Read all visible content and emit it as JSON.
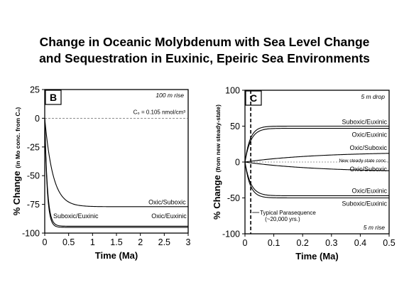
{
  "slide": {
    "title_line1": "Change in Oceanic Molybdenum with Sea Level Change",
    "title_line2": "and Sequestration in Euxinic, Epeiric Sea Environments"
  },
  "chart_data": [
    {
      "type": "line",
      "panel": "B",
      "title": "",
      "corner_note": "100 m rise",
      "reference_label": "C₀ = 0.105 nmol/cm³",
      "xlabel": "Time (Ma)",
      "ylabel_main": "% Change",
      "ylabel_sub": "(in Mo conc. from C₀)",
      "xlim": [
        0,
        3
      ],
      "ylim": [
        -100,
        25
      ],
      "xticks": [
        0,
        0.5,
        1,
        1.5,
        2,
        2.5,
        3
      ],
      "xtick_labels": [
        "0",
        "0.5",
        "1",
        "1.5",
        "2",
        "2.5",
        "3"
      ],
      "yticks": [
        -100,
        -75,
        -50,
        -25,
        0,
        25
      ],
      "ytick_labels": [
        "-100",
        "-75",
        "-50",
        "-25",
        "0",
        "25"
      ],
      "grid": false,
      "reference_line": {
        "y": 0,
        "style": "dashed"
      },
      "series": [
        {
          "name": "Oxic/Suboxic",
          "asymptote": -77,
          "tau": 0.17
        },
        {
          "name": "Oxic/Euxinic",
          "asymptote": -94,
          "tau": 0.055
        },
        {
          "name": "Suboxic/Euxinic",
          "asymptote": -95,
          "tau": 0.05
        }
      ],
      "labels": [
        {
          "series": "Oxic/Suboxic",
          "text": "Oxic/Suboxic",
          "x": 2.95,
          "y": -73,
          "anchor": "end"
        },
        {
          "series": "Suboxic/Euxinic",
          "text": "Suboxic/Euxinic",
          "x": 0.65,
          "y": -85,
          "anchor": "middle"
        },
        {
          "series": "Oxic/Euxinic",
          "text": "Oxic/Euxinic",
          "x": 2.6,
          "y": -85,
          "anchor": "middle"
        }
      ]
    },
    {
      "type": "line",
      "panel": "C",
      "title": "",
      "corner_note_top": "5 m drop",
      "corner_note_bottom": "5 m rise",
      "xlabel": "Time (Ma)",
      "ylabel_main": "% Change",
      "ylabel_sub": "(from new steady-state)",
      "xlim": [
        0,
        0.5
      ],
      "ylim": [
        -100,
        100
      ],
      "xticks": [
        0,
        0.1,
        0.2,
        0.3,
        0.4,
        0.5
      ],
      "xtick_labels": [
        "0",
        "0.1",
        "0.2",
        "0.3",
        "0.4",
        "0.5"
      ],
      "yticks": [
        -100,
        -50,
        0,
        50,
        100
      ],
      "ytick_labels": [
        "-100",
        "-50",
        "0",
        "50",
        "100"
      ],
      "grid": false,
      "vertical_marker": {
        "x": 0.02,
        "style": "dashed",
        "label_line1": "Typical Parasequence",
        "label_line2": "(~20,000 yrs.)"
      },
      "series": [
        {
          "name": "Suboxic/Euxinic",
          "asymptote": 50,
          "tau": 0.018
        },
        {
          "name": "Oxic/Euxinic",
          "asymptote": 47,
          "tau": 0.02
        },
        {
          "name": "Oxic/Suboxic",
          "asymptote": 14,
          "tau": 0.25
        },
        {
          "name": "New steady-state conc.",
          "asymptote": 0,
          "tau": 0.1
        },
        {
          "name": "Oxic/Suboxic",
          "asymptote": -14,
          "tau": 0.25
        },
        {
          "name": "Oxic/Euxinic",
          "asymptote": -47,
          "tau": 0.02
        },
        {
          "name": "Suboxic/Euxinic",
          "asymptote": -50,
          "tau": 0.018
        }
      ],
      "labels": [
        {
          "text": "Suboxic/Euxinic",
          "x": 0.5,
          "y": 56,
          "anchor": "end",
          "small": false
        },
        {
          "text": "Oxic/Euxinic",
          "x": 0.5,
          "y": 38,
          "anchor": "end",
          "small": false
        },
        {
          "text": "Oxic/Suboxic",
          "x": 0.5,
          "y": 20,
          "anchor": "end",
          "small": false
        },
        {
          "text": "New steady-state conc.",
          "x": 0.5,
          "y": 3,
          "anchor": "end",
          "small": true
        },
        {
          "text": "Oxic/Suboxic",
          "x": 0.5,
          "y": -10,
          "anchor": "end",
          "small": false
        },
        {
          "text": "Oxic/Euxinic",
          "x": 0.5,
          "y": -40,
          "anchor": "end",
          "small": false
        },
        {
          "text": "Suboxic/Euxinic",
          "x": 0.5,
          "y": -58,
          "anchor": "end",
          "small": false
        }
      ]
    }
  ]
}
